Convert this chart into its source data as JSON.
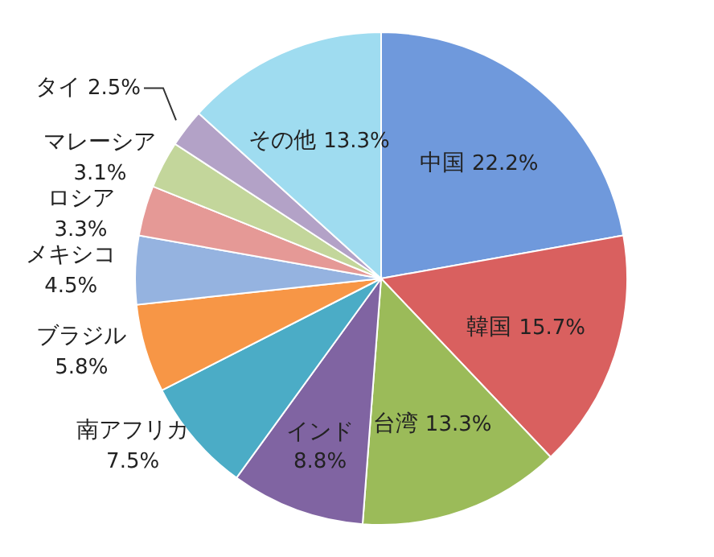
{
  "chart_data": {
    "type": "pie",
    "categories": [
      "中国",
      "韓国",
      "台湾",
      "インド",
      "南アフリカ",
      "ブラジル",
      "メキシコ",
      "ロシア",
      "マレーシア",
      "タイ",
      "その他"
    ],
    "values": [
      22.2,
      15.7,
      13.3,
      8.8,
      7.5,
      5.8,
      4.5,
      3.3,
      3.1,
      2.5,
      13.3
    ],
    "colors": [
      "#6f99dc",
      "#d9605f",
      "#9bbb59",
      "#8064a2",
      "#4bacc6",
      "#f79646",
      "#95b3e0",
      "#e59996",
      "#c3d69b",
      "#b3a2c7",
      "#9fdcf0"
    ],
    "value_labels": [
      "22.2%",
      "15.7%",
      "13.3%",
      "8.8%",
      "7.5%",
      "5.8%",
      "4.5%",
      "3.3%",
      "3.1%",
      "2.5%",
      "13.3%"
    ]
  }
}
